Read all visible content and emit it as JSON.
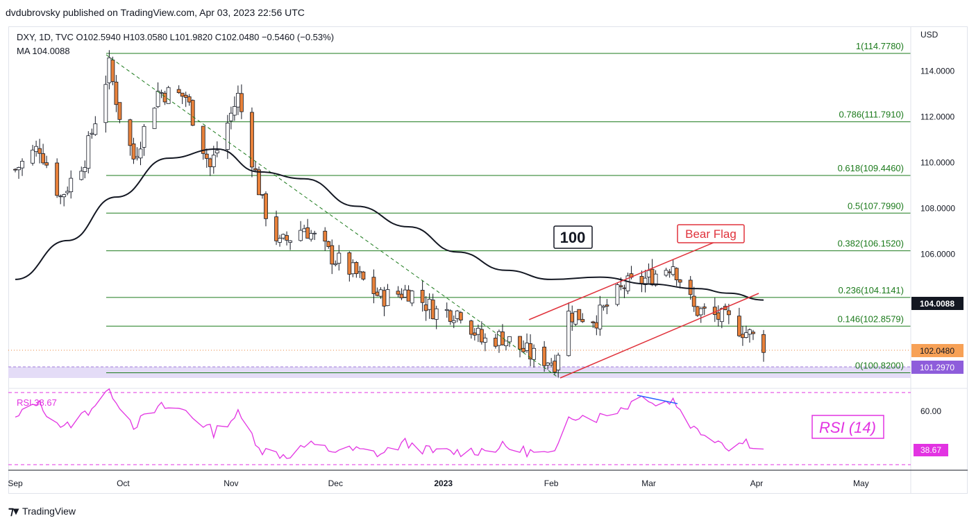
{
  "header": {
    "publisher": "dvdubrovsky published on TradingView.com, Apr 03, 2023 22:56 UTC"
  },
  "legend": {
    "ohlc": "DXY, 1D, TVC  O102.5940  H103.0580  L101.9820  C102.0480  −0.5460 (−0.53%)",
    "ma": "MA  104.0088",
    "rsi": "RSI  38.67"
  },
  "footer": {
    "brand": "TradingView"
  },
  "colors": {
    "up": "#ffffff",
    "down": "#e8813a",
    "fib": "#1b7a1b",
    "ma": "#131722",
    "rsi": "#e233e2",
    "flag": "#e0323b",
    "diverge": "#2962ff",
    "zone": "#e4dcf7"
  },
  "chart_data": [
    {
      "type": "candlestick",
      "symbol": "DXY",
      "currency": "USD",
      "y_unit_label": "USD",
      "ylim": [
        100.2,
        115.9
      ],
      "y_ticks": [
        "114.0000",
        "112.0000",
        "110.0000",
        "108.0000",
        "106.0000"
      ],
      "x_ticks": [
        "Sep",
        "Oct",
        "Nov",
        "Dec",
        "2023",
        "Feb",
        "Mar",
        "Apr",
        "May"
      ],
      "price_labels": {
        "ma": "104.0088",
        "close": "102.0480",
        "support": "101.2970"
      },
      "fib_levels": [
        {
          "ratio": "1",
          "value": 114.778,
          "label": "1(114.7780)"
        },
        {
          "ratio": "0.786",
          "value": 111.791,
          "label": "0.786(111.7910)"
        },
        {
          "ratio": "0.618",
          "value": 109.446,
          "label": "0.618(109.4460)"
        },
        {
          "ratio": "0.5",
          "value": 107.799,
          "label": "0.5(107.7990)"
        },
        {
          "ratio": "0.382",
          "value": 106.152,
          "label": "0.382(106.1520)"
        },
        {
          "ratio": "0.236",
          "value": 104.1141,
          "label": "0.236(104.1141)"
        },
        {
          "ratio": "0.146",
          "value": 102.8579,
          "label": "0.146(102.8579)"
        },
        {
          "ratio": "0",
          "value": 100.82,
          "label": "0(100.8200)"
        }
      ],
      "annotations": {
        "ma_label": "100",
        "pattern_label": "Bear Flag"
      },
      "ma_series": [
        [
          "2022-08-31",
          104.9
        ],
        [
          "2022-09-15",
          106.6
        ],
        [
          "2022-09-29",
          108.5
        ],
        [
          "2022-10-14",
          110.2
        ],
        [
          "2022-10-28",
          110.6
        ],
        [
          "2022-11-09",
          109.6
        ],
        [
          "2022-11-22",
          109.3
        ],
        [
          "2022-12-07",
          108.1
        ],
        [
          "2022-12-22",
          107.2
        ],
        [
          "2023-01-05",
          106.1
        ],
        [
          "2023-01-19",
          105.3
        ],
        [
          "2023-02-01",
          104.9
        ],
        [
          "2023-02-15",
          105.0
        ],
        [
          "2023-03-01",
          104.7
        ],
        [
          "2023-03-15",
          104.5
        ],
        [
          "2023-03-24",
          104.3
        ],
        [
          "2023-04-03",
          104.0
        ]
      ]
    },
    {
      "type": "line",
      "name": "RSI (14)",
      "title": "RSI (14)",
      "period": 14,
      "ylim": [
        30,
        72
      ],
      "y_ticks": [
        "60.00"
      ],
      "last_value": "38.67",
      "bands": [
        70,
        30
      ]
    }
  ]
}
